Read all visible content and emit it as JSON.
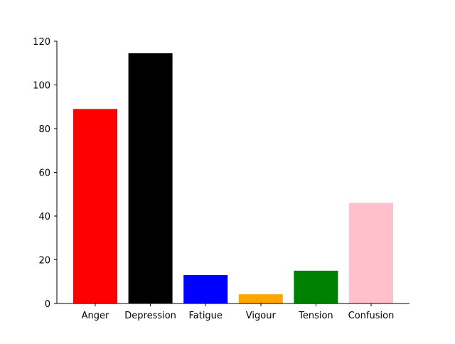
{
  "chart_data": {
    "type": "bar",
    "title": "",
    "xlabel": "",
    "ylabel": "",
    "categories": [
      "Anger",
      "Depression",
      "Fatigue",
      "Vigour",
      "Tension",
      "Confusion"
    ],
    "values": [
      89,
      114.5,
      13,
      4.2,
      15,
      46
    ],
    "colors": [
      "#ff0000",
      "#000000",
      "#0000ff",
      "#ffa500",
      "#008000",
      "#ffc0cb"
    ],
    "ylim": [
      0,
      120
    ],
    "yticks": [
      0,
      20,
      40,
      60,
      80,
      100,
      120
    ],
    "grid": false,
    "legend": "none"
  }
}
